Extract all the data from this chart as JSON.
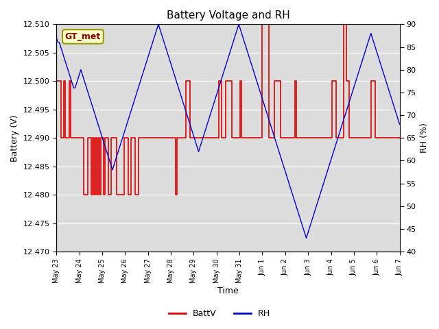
{
  "title": "Battery Voltage and RH",
  "xlabel": "Time",
  "ylabel_left": "Battery (V)",
  "ylabel_right": "RH (%)",
  "ylim_left": [
    12.47,
    12.51
  ],
  "ylim_right": [
    40,
    90
  ],
  "yticks_left": [
    12.47,
    12.475,
    12.48,
    12.485,
    12.49,
    12.495,
    12.5,
    12.505,
    12.51
  ],
  "yticks_right": [
    40,
    45,
    50,
    55,
    60,
    65,
    70,
    75,
    80,
    85,
    90
  ],
  "xtick_labels": [
    "May 23",
    "May 24",
    "May 25",
    "May 26",
    "May 27",
    "May 28",
    "May 29",
    "May 30",
    "May 31",
    "Jun 1",
    "Jun 2",
    "Jun 3",
    "Jun 4",
    "Jun 5",
    "Jun 6",
    "Jun 7"
  ],
  "batt_color": "#dd0000",
  "rh_color": "#0000cc",
  "legend_label": "GT_met",
  "background_color": "#dcdcdc",
  "fig_background": "#ffffff",
  "batt_values": [
    12.5,
    12.5,
    12.5,
    12.49,
    12.49,
    12.5,
    12.49,
    12.49,
    12.49,
    12.5,
    12.49,
    12.49,
    12.49,
    12.49,
    12.49,
    12.49,
    12.49,
    12.49,
    12.49,
    12.48,
    12.48,
    12.48,
    12.49,
    12.49,
    12.48,
    12.49,
    12.48,
    12.49,
    12.48,
    12.49,
    12.48,
    12.49,
    12.49,
    12.48,
    12.49,
    12.49,
    12.48,
    12.48,
    12.49,
    12.49,
    12.49,
    12.49,
    12.48,
    12.48,
    12.48,
    12.48,
    12.48,
    12.49,
    12.49,
    12.49,
    12.48,
    12.48,
    12.49,
    12.49,
    12.49,
    12.48,
    12.48,
    12.49,
    12.49,
    12.49,
    12.49,
    12.49,
    12.49,
    12.49,
    12.49,
    12.49,
    12.49,
    12.49,
    12.49,
    12.49,
    12.49,
    12.49,
    12.49,
    12.49,
    12.49,
    12.49,
    12.49,
    12.49,
    12.49,
    12.49,
    12.49,
    12.49,
    12.49,
    12.48,
    12.49,
    12.49,
    12.49,
    12.49,
    12.49,
    12.49,
    12.5,
    12.5,
    12.5,
    12.49,
    12.49,
    12.49,
    12.49,
    12.49,
    12.49,
    12.49,
    12.49,
    12.49,
    12.49,
    12.49,
    12.49,
    12.49,
    12.49,
    12.49,
    12.49,
    12.49,
    12.49,
    12.49,
    12.49,
    12.5,
    12.5,
    12.49,
    12.49,
    12.49,
    12.5,
    12.5,
    12.5,
    12.5,
    12.49,
    12.49,
    12.49,
    12.49,
    12.49,
    12.49,
    12.5,
    12.49,
    12.49,
    12.49,
    12.49,
    12.49,
    12.49,
    12.49,
    12.49,
    12.49,
    12.49,
    12.49,
    12.49,
    12.49,
    12.49,
    12.51,
    12.51,
    12.51,
    12.51,
    12.51,
    12.49,
    12.49,
    12.49,
    12.49,
    12.5,
    12.5,
    12.5,
    12.5,
    12.49,
    12.49,
    12.49,
    12.49,
    12.49,
    12.49,
    12.49,
    12.49,
    12.49,
    12.49,
    12.5,
    12.49,
    12.49,
    12.49,
    12.49,
    12.49,
    12.49,
    12.49,
    12.49,
    12.49,
    12.49,
    12.49,
    12.49,
    12.49,
    12.49,
    12.49,
    12.49,
    12.49,
    12.49,
    12.49,
    12.49,
    12.49,
    12.49,
    12.49,
    12.49,
    12.49,
    12.5,
    12.5,
    12.5,
    12.49,
    12.49,
    12.49,
    12.49,
    12.49,
    12.51,
    12.51,
    12.5,
    12.5,
    12.49,
    12.49,
    12.49,
    12.49,
    12.49,
    12.49,
    12.49,
    12.49,
    12.49,
    12.49,
    12.49,
    12.49,
    12.49,
    12.49,
    12.49,
    12.5,
    12.5,
    12.5,
    12.49,
    12.49,
    12.49,
    12.49,
    12.49,
    12.49,
    12.49,
    12.49,
    12.49,
    12.49,
    12.49,
    12.49,
    12.49,
    12.49,
    12.49,
    12.49,
    12.49,
    12.49
  ],
  "rh_values": [
    87,
    86,
    86,
    85,
    84,
    83,
    82,
    81,
    80,
    79,
    78,
    77,
    76,
    76,
    77,
    78,
    79,
    80,
    79,
    78,
    77,
    76,
    75,
    74,
    73,
    72,
    71,
    70,
    69,
    68,
    67,
    66,
    65,
    64,
    63,
    62,
    61,
    60,
    59,
    58,
    59,
    60,
    61,
    62,
    63,
    64,
    65,
    66,
    67,
    68,
    69,
    70,
    71,
    72,
    73,
    74,
    75,
    76,
    77,
    78,
    79,
    80,
    81,
    82,
    83,
    84,
    85,
    86,
    87,
    88,
    89,
    90,
    89,
    88,
    87,
    86,
    85,
    84,
    83,
    82,
    81,
    80,
    79,
    78,
    77,
    76,
    75,
    74,
    73,
    72,
    71,
    70,
    69,
    68,
    67,
    66,
    65,
    64,
    63,
    62,
    63,
    64,
    65,
    66,
    67,
    68,
    69,
    70,
    71,
    72,
    73,
    74,
    75,
    76,
    77,
    78,
    79,
    80,
    81,
    82,
    83,
    84,
    85,
    86,
    87,
    88,
    89,
    90,
    89,
    88,
    87,
    86,
    85,
    84,
    83,
    82,
    81,
    80,
    79,
    78,
    77,
    76,
    75,
    74,
    73,
    72,
    71,
    70,
    69,
    68,
    67,
    66,
    65,
    64,
    63,
    62,
    61,
    60,
    59,
    58,
    57,
    56,
    55,
    54,
    53,
    52,
    51,
    50,
    49,
    48,
    47,
    46,
    45,
    44,
    43,
    44,
    45,
    46,
    47,
    48,
    49,
    50,
    51,
    52,
    53,
    54,
    55,
    56,
    57,
    58,
    59,
    60,
    61,
    62,
    63,
    64,
    65,
    66,
    67,
    68,
    69,
    70,
    71,
    72,
    73,
    74,
    75,
    76,
    77,
    78,
    79,
    80,
    81,
    82,
    83,
    84,
    85,
    86,
    87,
    88,
    87,
    86,
    85,
    84,
    83,
    82,
    81,
    80,
    79,
    78,
    77,
    76,
    75,
    74,
    73,
    72,
    71,
    70,
    69,
    68
  ]
}
